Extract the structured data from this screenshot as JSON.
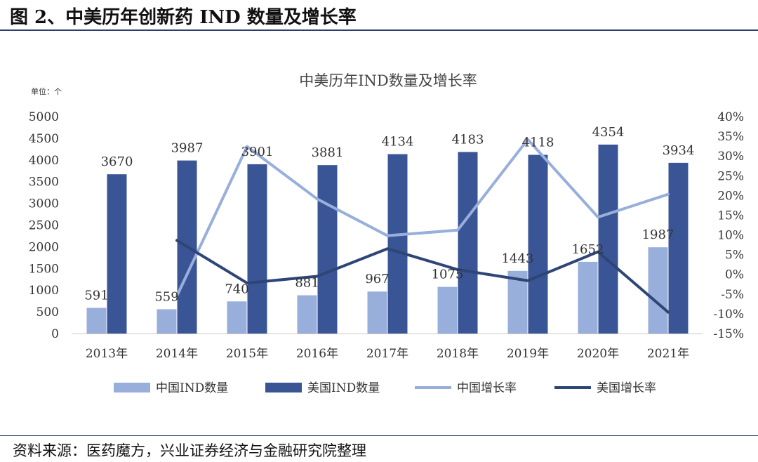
{
  "figure": {
    "title": "图 2、中美历年创新药 IND 数量及增长率",
    "source": "资料来源：医药魔方，兴业证券经济与金融研究院整理"
  },
  "colors": {
    "china_bar": "#98aedb",
    "us_bar": "#3a5595",
    "china_line": "#98aedb",
    "us_line": "#2e4577",
    "axis": "#c9c9c9",
    "rule": "#2d3e6e"
  },
  "chart_data": {
    "type": "bar",
    "title": "中美历年IND数量及增长率",
    "unit_label": "单位：个",
    "categories": [
      "2013年",
      "2014年",
      "2015年",
      "2016年",
      "2017年",
      "2018年",
      "2019年",
      "2020年",
      "2021年"
    ],
    "series": [
      {
        "name": "中国IND数量",
        "kind": "bar",
        "axis": "left",
        "values": [
          591,
          559,
          740,
          881,
          967,
          1075,
          1443,
          1652,
          1987
        ]
      },
      {
        "name": "美国IND数量",
        "kind": "bar",
        "axis": "left",
        "values": [
          3670,
          3987,
          3901,
          3881,
          4134,
          4183,
          4118,
          4354,
          3934
        ]
      },
      {
        "name": "中国增长率",
        "kind": "line",
        "axis": "right",
        "values": [
          null,
          -5.5,
          32.4,
          19.1,
          9.8,
          11.2,
          34.2,
          14.5,
          20.3
        ]
      },
      {
        "name": "美国增长率",
        "kind": "line",
        "axis": "right",
        "values": [
          null,
          8.6,
          -2.2,
          -0.5,
          6.5,
          1.2,
          -1.6,
          5.7,
          -9.6
        ]
      }
    ],
    "y_left": {
      "min": 0,
      "max": 5000,
      "step": 500,
      "ticks": [
        "0",
        "500",
        "1000",
        "1500",
        "2000",
        "2500",
        "3000",
        "3500",
        "4000",
        "4500",
        "5000"
      ]
    },
    "y_right": {
      "min": -15,
      "max": 40,
      "step": 5,
      "ticks": [
        "-15%",
        "-10%",
        "-5%",
        "0%",
        "5%",
        "10%",
        "15%",
        "20%",
        "25%",
        "30%",
        "35%",
        "40%"
      ]
    },
    "grid": false,
    "legend": "bottom"
  }
}
